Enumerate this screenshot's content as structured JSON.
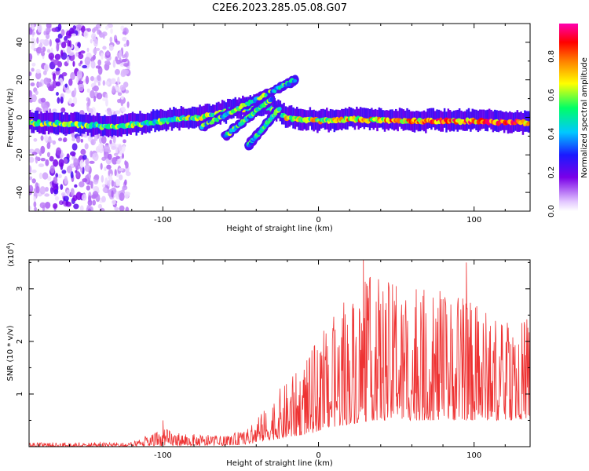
{
  "title": "C2E6.2023.285.05.08.G07",
  "chart_data": [
    {
      "type": "heatmap",
      "xlabel": "Height of straight line (km)",
      "ylabel": "Frequency (Hz)",
      "xlim": [
        -186,
        136
      ],
      "ylim": [
        -50,
        50
      ],
      "x_ticks": [
        -100,
        0,
        100
      ],
      "y_ticks": [
        -40,
        -20,
        0,
        20,
        40
      ],
      "colorbar": {
        "label": "Normalized spectral amplitude",
        "range": [
          0,
          0.97
        ],
        "ticks": [
          0.0,
          0.2,
          0.4,
          0.6,
          0.8
        ],
        "colormap": [
          "#ffffff",
          "#e3c8ff",
          "#7a00e8",
          "#1a1aff",
          "#00c8ff",
          "#00ff66",
          "#ffff00",
          "#ff8000",
          "#ff0000",
          "#ff00b0"
        ]
      },
      "main_ridge": {
        "points": [
          [
            -186,
            -3
          ],
          [
            -150,
            -4
          ],
          [
            -130,
            -5
          ],
          [
            -110,
            -3
          ],
          [
            -90,
            -1
          ],
          [
            -75,
            0
          ],
          [
            -55,
            4
          ],
          [
            -35,
            6
          ],
          [
            -20,
            0
          ],
          [
            0,
            -2
          ],
          [
            20,
            -1
          ],
          [
            60,
            -2
          ],
          [
            100,
            -2
          ],
          [
            136,
            -3
          ]
        ],
        "peak_amplitude": 0.97
      },
      "branches": [
        {
          "from": [
            -75,
            -5
          ],
          "to": [
            -15,
            20
          ]
        },
        {
          "from": [
            -60,
            -10
          ],
          "to": [
            -30,
            10
          ]
        },
        {
          "from": [
            -45,
            -15
          ],
          "to": [
            -25,
            5
          ]
        }
      ],
      "noise_region_x": [
        -186,
        -122
      ]
    },
    {
      "type": "line",
      "xlabel": "Height of straight line (km)",
      "ylabel": "SNR (10 * v/v)",
      "y_multiplier": "(x10",
      "y_multiplier_exp": "4",
      "xlim": [
        -186,
        136
      ],
      "ylim": [
        0,
        3.55
      ],
      "x_ticks": [
        -100,
        0,
        100
      ],
      "y_ticks": [
        1,
        2,
        3
      ],
      "series_color": "#ee3333",
      "envelope": {
        "x": [
          -186,
          -120,
          -100,
          -85,
          -60,
          -45,
          -35,
          -25,
          -15,
          -5,
          5,
          15,
          25,
          35,
          50,
          70,
          90,
          110,
          125,
          136
        ],
        "upper": [
          0.08,
          0.08,
          0.35,
          0.25,
          0.2,
          0.35,
          0.7,
          1.1,
          1.4,
          1.8,
          2.3,
          2.7,
          3.1,
          3.3,
          3.1,
          3.0,
          2.9,
          2.6,
          2.3,
          2.5
        ],
        "lower": [
          0.0,
          0.0,
          0.02,
          0.02,
          0.02,
          0.05,
          0.1,
          0.15,
          0.2,
          0.25,
          0.35,
          0.4,
          0.45,
          0.5,
          0.5,
          0.5,
          0.5,
          0.5,
          0.5,
          0.55
        ]
      },
      "peaks": [
        [
          29,
          3.55
        ],
        [
          95,
          3.5
        ],
        [
          50,
          3.05
        ],
        [
          -100,
          0.5
        ]
      ]
    }
  ]
}
